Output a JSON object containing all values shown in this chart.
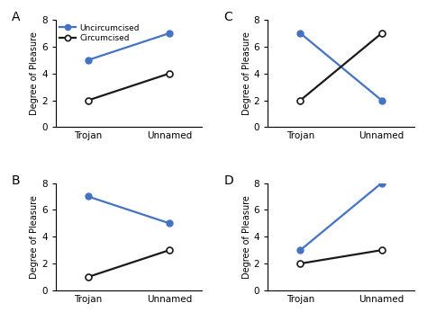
{
  "panels": {
    "A": {
      "uncircumcised": [
        5,
        7
      ],
      "circumcised": [
        2,
        4
      ]
    },
    "B": {
      "uncircumcised": [
        7,
        5
      ],
      "circumcised": [
        1,
        3
      ]
    },
    "C": {
      "uncircumcised": [
        7,
        2
      ],
      "circumcised": [
        2,
        7
      ]
    },
    "D": {
      "uncircumcised": [
        3,
        8
      ],
      "circumcised": [
        2,
        3
      ]
    }
  },
  "x_labels": [
    "Trojan",
    "Unnamed"
  ],
  "y_label": "Degree of Pleasure",
  "y_lim": [
    0,
    8
  ],
  "y_ticks": [
    0,
    2,
    4,
    6,
    8
  ],
  "uncircumcised_color": "#4472C4",
  "circumcised_color": "#1a1a1a",
  "line_width": 1.6,
  "marker_size_uncirc": 5,
  "marker_size_circ": 5,
  "background_color": "#ffffff",
  "legend_label_uncirc": "Uncircumcised",
  "legend_label_circ": "Circumcised"
}
